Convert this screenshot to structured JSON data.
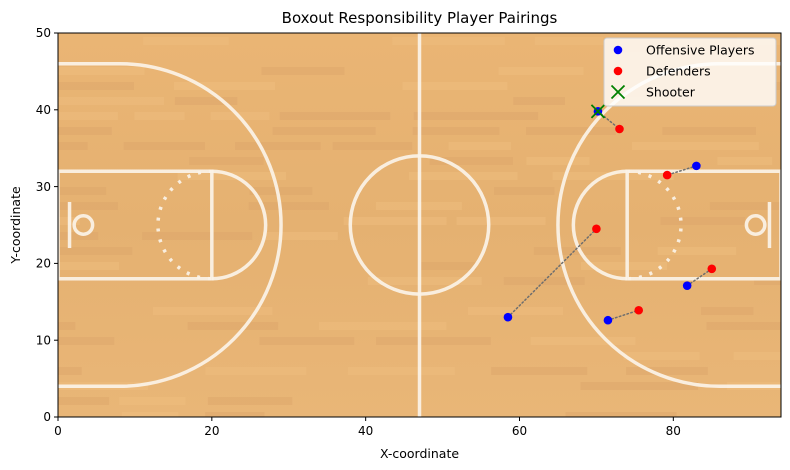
{
  "chart_data": {
    "type": "scatter",
    "title": "Boxout Responsibility Player Pairings",
    "xlabel": "X-coordinate",
    "ylabel": "Y-coordinate",
    "xlim": [
      0,
      94
    ],
    "ylim": [
      0,
      50
    ],
    "xticks": [
      0,
      20,
      40,
      60,
      80
    ],
    "yticks": [
      0,
      10,
      20,
      30,
      40,
      50
    ],
    "legend_position": "top-right",
    "series": [
      {
        "name": "Offensive Players",
        "color": "#0000ff",
        "points": [
          {
            "x": 70.2,
            "y": 39.8
          },
          {
            "x": 83.0,
            "y": 32.7
          },
          {
            "x": 58.5,
            "y": 13.0
          },
          {
            "x": 71.5,
            "y": 12.6
          },
          {
            "x": 81.8,
            "y": 17.1
          }
        ]
      },
      {
        "name": "Defenders",
        "color": "#ff0000",
        "points": [
          {
            "x": 73.0,
            "y": 37.5
          },
          {
            "x": 79.2,
            "y": 31.5
          },
          {
            "x": 70.0,
            "y": 24.5
          },
          {
            "x": 75.5,
            "y": 13.9
          },
          {
            "x": 85.0,
            "y": 19.3
          }
        ]
      },
      {
        "name": "Shooter",
        "color": "#008000",
        "marker": "x",
        "points": [
          {
            "x": 70.2,
            "y": 39.8
          }
        ]
      }
    ],
    "pairings": [
      {
        "offense": 0,
        "defender": 0
      },
      {
        "offense": 1,
        "defender": 1
      },
      {
        "offense": 2,
        "defender": 2
      },
      {
        "offense": 3,
        "defender": 3
      },
      {
        "offense": 4,
        "defender": 4
      }
    ]
  }
}
